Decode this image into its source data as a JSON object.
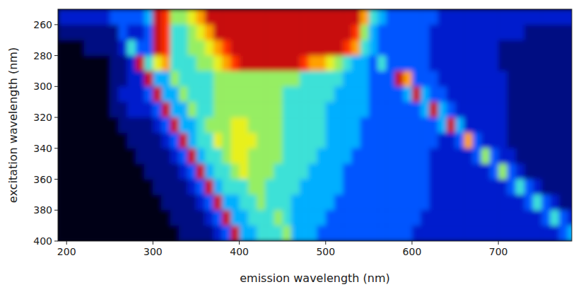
{
  "chart_data": {
    "type": "heatmap",
    "x_label": "emission wavelength (nm)",
    "y_label": "excitation wavelength (nm)",
    "xlim": [
      190,
      785
    ],
    "ylim": [
      400,
      250
    ],
    "xticks": [
      200,
      300,
      400,
      500,
      600,
      700
    ],
    "yticks": [
      260,
      280,
      300,
      320,
      340,
      360,
      380,
      400
    ],
    "zlim": [
      0,
      10
    ],
    "x": [
      195,
      205,
      215,
      225,
      235,
      245,
      255,
      265,
      275,
      285,
      295,
      305,
      315,
      325,
      335,
      345,
      355,
      365,
      375,
      385,
      395,
      405,
      415,
      425,
      435,
      445,
      455,
      465,
      475,
      485,
      495,
      505,
      515,
      525,
      535,
      545,
      555,
      565,
      575,
      585,
      595,
      605,
      615,
      625,
      635,
      645,
      655,
      665,
      675,
      685,
      695,
      705,
      715,
      725,
      735,
      745,
      755,
      765,
      775,
      785
    ],
    "y": [
      255,
      265,
      275,
      285,
      295,
      305,
      315,
      325,
      335,
      345,
      355,
      365,
      375,
      385,
      395
    ],
    "cells": [
      [
        2,
        2,
        2,
        2,
        2,
        2,
        3,
        3,
        3,
        3,
        4,
        10,
        9,
        6,
        6,
        7,
        8,
        10,
        10,
        10,
        10,
        10,
        10,
        10,
        10,
        10,
        10,
        10,
        10,
        10,
        10,
        10,
        10,
        10,
        10,
        8,
        5,
        4,
        3,
        3,
        3,
        3,
        3,
        3,
        2,
        2,
        2,
        2,
        2,
        2,
        2,
        2,
        2,
        2,
        2,
        2,
        2,
        2,
        2,
        2
      ],
      [
        1,
        1,
        1,
        1,
        1,
        1,
        1,
        3,
        2,
        2,
        3,
        10,
        9,
        5,
        5,
        6,
        7,
        8,
        10,
        10,
        10,
        10,
        10,
        10,
        10,
        10,
        10,
        10,
        10,
        10,
        10,
        10,
        10,
        10,
        9,
        6,
        4,
        3,
        3,
        3,
        3,
        3,
        3,
        2,
        2,
        2,
        2,
        2,
        2,
        2,
        2,
        2,
        2,
        2,
        1,
        1,
        1,
        1,
        1,
        1
      ],
      [
        0,
        0,
        0,
        1,
        1,
        1,
        1,
        2,
        5,
        3,
        3,
        10,
        9,
        5,
        5,
        6,
        6,
        7,
        8,
        9,
        10,
        10,
        10,
        10,
        10,
        10,
        10,
        10,
        10,
        10,
        10,
        10,
        10,
        9,
        8,
        5,
        4,
        3,
        3,
        3,
        3,
        3,
        3,
        2,
        2,
        2,
        2,
        2,
        2,
        2,
        2,
        1,
        1,
        1,
        1,
        1,
        1,
        1,
        1,
        1
      ],
      [
        0,
        0,
        0,
        0,
        0,
        0,
        1,
        1,
        2,
        10,
        5,
        7,
        8,
        5,
        5,
        5,
        6,
        6,
        7,
        8,
        9,
        10,
        10,
        10,
        10,
        10,
        10,
        10,
        9,
        8,
        8,
        7,
        6,
        5,
        4,
        4,
        3,
        5,
        3,
        3,
        3,
        3,
        3,
        2,
        2,
        2,
        2,
        2,
        2,
        2,
        2,
        1,
        1,
        1,
        1,
        1,
        1,
        1,
        1,
        1
      ],
      [
        0,
        0,
        0,
        0,
        0,
        0,
        1,
        1,
        2,
        2,
        10,
        4,
        4,
        6,
        5,
        5,
        5,
        5,
        6,
        6,
        6,
        6,
        6,
        6,
        6,
        6,
        6,
        6,
        5,
        5,
        5,
        5,
        5,
        4,
        4,
        4,
        3,
        3,
        3,
        10,
        8,
        3,
        3,
        3,
        2,
        2,
        2,
        2,
        2,
        2,
        2,
        2,
        1,
        1,
        1,
        1,
        1,
        1,
        1,
        1
      ],
      [
        0,
        0,
        0,
        0,
        0,
        0,
        1,
        2,
        2,
        2,
        3,
        10,
        4,
        4,
        6,
        5,
        5,
        5,
        6,
        6,
        6,
        6,
        6,
        6,
        6,
        6,
        5,
        5,
        5,
        5,
        5,
        5,
        4,
        4,
        4,
        4,
        3,
        3,
        3,
        3,
        4,
        10,
        4,
        3,
        3,
        2,
        2,
        2,
        2,
        2,
        2,
        2,
        1,
        1,
        1,
        1,
        1,
        1,
        1,
        1
      ],
      [
        0,
        0,
        0,
        0,
        0,
        0,
        1,
        1,
        2,
        2,
        2,
        3,
        10,
        4,
        4,
        6,
        5,
        5,
        6,
        6,
        6,
        6,
        6,
        6,
        6,
        6,
        5,
        5,
        5,
        5,
        5,
        4,
        4,
        4,
        4,
        4,
        3,
        3,
        3,
        3,
        3,
        3,
        4,
        10,
        4,
        3,
        2,
        2,
        2,
        2,
        2,
        2,
        1,
        1,
        1,
        1,
        1,
        1,
        1,
        1
      ],
      [
        0,
        0,
        0,
        0,
        0,
        0,
        0,
        1,
        1,
        1,
        1,
        2,
        3,
        10,
        4,
        4,
        5,
        6,
        6,
        6,
        7,
        7,
        6,
        6,
        6,
        6,
        5,
        5,
        5,
        5,
        5,
        4,
        4,
        4,
        4,
        3,
        3,
        3,
        3,
        3,
        3,
        3,
        3,
        3,
        4,
        10,
        4,
        2,
        2,
        2,
        2,
        2,
        1,
        1,
        1,
        1,
        1,
        1,
        1,
        1
      ],
      [
        0,
        0,
        0,
        0,
        0,
        0,
        0,
        0,
        1,
        1,
        1,
        1,
        2,
        3,
        10,
        4,
        5,
        5,
        7,
        6,
        7,
        7,
        7,
        6,
        6,
        6,
        5,
        5,
        5,
        5,
        5,
        4,
        4,
        4,
        4,
        3,
        3,
        3,
        3,
        3,
        3,
        3,
        3,
        3,
        2,
        2,
        3,
        8,
        3,
        2,
        2,
        2,
        1,
        1,
        1,
        1,
        1,
        1,
        1,
        1
      ],
      [
        0,
        0,
        0,
        0,
        0,
        0,
        0,
        0,
        0,
        1,
        1,
        1,
        1,
        2,
        3,
        10,
        4,
        5,
        5,
        6,
        7,
        7,
        6,
        6,
        6,
        6,
        5,
        5,
        5,
        5,
        4,
        4,
        4,
        4,
        3,
        3,
        3,
        3,
        3,
        3,
        3,
        3,
        3,
        2,
        2,
        2,
        2,
        2,
        3,
        6,
        3,
        2,
        2,
        1,
        1,
        1,
        1,
        1,
        1,
        1
      ],
      [
        0,
        0,
        0,
        0,
        0,
        0,
        0,
        0,
        0,
        0,
        1,
        1,
        1,
        1,
        2,
        3,
        10,
        4,
        5,
        5,
        6,
        7,
        6,
        6,
        6,
        5,
        5,
        5,
        5,
        4,
        4,
        4,
        4,
        3,
        3,
        3,
        3,
        3,
        3,
        3,
        3,
        3,
        3,
        2,
        2,
        2,
        2,
        2,
        2,
        2,
        3,
        6,
        3,
        2,
        1,
        1,
        1,
        1,
        1,
        1
      ],
      [
        0,
        0,
        0,
        0,
        0,
        0,
        0,
        0,
        0,
        0,
        0,
        1,
        1,
        1,
        1,
        2,
        3,
        10,
        4,
        5,
        5,
        5,
        6,
        6,
        5,
        5,
        5,
        5,
        4,
        4,
        4,
        4,
        4,
        3,
        3,
        3,
        3,
        3,
        3,
        3,
        3,
        3,
        3,
        2,
        2,
        2,
        2,
        2,
        2,
        2,
        2,
        2,
        3,
        5,
        3,
        2,
        1,
        1,
        1,
        1
      ],
      [
        0,
        0,
        0,
        0,
        0,
        0,
        0,
        0,
        0,
        0,
        0,
        0,
        1,
        1,
        1,
        1,
        2,
        3,
        10,
        4,
        4,
        5,
        5,
        6,
        5,
        5,
        5,
        4,
        4,
        4,
        4,
        4,
        3,
        3,
        3,
        3,
        3,
        3,
        3,
        3,
        3,
        3,
        3,
        2,
        2,
        2,
        2,
        2,
        2,
        2,
        2,
        2,
        2,
        2,
        3,
        5,
        3,
        2,
        1,
        1
      ],
      [
        0,
        0,
        0,
        0,
        0,
        0,
        0,
        0,
        0,
        0,
        0,
        0,
        0,
        1,
        1,
        1,
        1,
        2,
        3,
        10,
        4,
        4,
        5,
        5,
        5,
        6,
        5,
        4,
        4,
        4,
        4,
        3,
        3,
        3,
        3,
        3,
        3,
        3,
        3,
        3,
        3,
        3,
        2,
        2,
        2,
        2,
        2,
        2,
        2,
        2,
        2,
        2,
        2,
        2,
        2,
        2,
        3,
        5,
        3,
        2
      ],
      [
        0,
        0,
        0,
        0,
        0,
        0,
        0,
        0,
        0,
        0,
        0,
        0,
        0,
        0,
        1,
        1,
        1,
        1,
        2,
        3,
        10,
        4,
        4,
        5,
        5,
        5,
        6,
        4,
        4,
        4,
        3,
        3,
        3,
        3,
        3,
        3,
        3,
        3,
        3,
        3,
        3,
        2,
        2,
        2,
        2,
        2,
        2,
        2,
        2,
        2,
        2,
        2,
        2,
        2,
        2,
        2,
        2,
        2,
        3,
        4
      ]
    ]
  }
}
